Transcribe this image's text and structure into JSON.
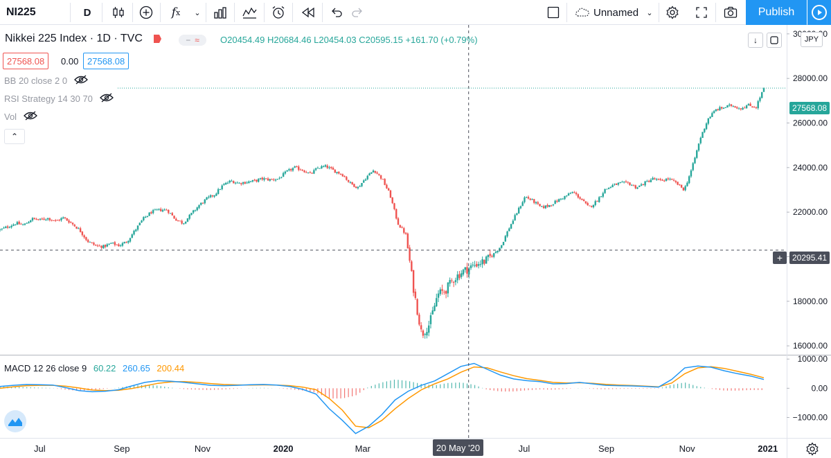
{
  "toolbar": {
    "symbol": "NI225",
    "interval": "D",
    "icons": [
      "candles-icon",
      "add-circle-icon",
      "fx-icon",
      "chevron-down-icon",
      "bar-chart-icon",
      "indicators-icon",
      "alarm-icon",
      "replay-icon",
      "undo-icon",
      "redo-icon",
      "square-icon",
      "cloud-icon",
      "gear-icon",
      "fullscreen-icon",
      "camera-icon",
      "play-icon"
    ],
    "layout_name": "Unnamed",
    "publish_label": "Publish"
  },
  "legend": {
    "title": "Nikkei 225 Index · 1D · TVC",
    "ohlc": "O20454.49 H20684.46 L20454.03 C20595.15 +161.70 (+0.79%)",
    "bid": "27568.08",
    "spread": "0.00",
    "ask": "27568.08",
    "indicators": [
      "BB 20 close 2 0",
      "RSI Strategy 14 30 70",
      "Vol"
    ],
    "currency": "JPY"
  },
  "macd_legend": {
    "label": "MACD 12 26 close 9",
    "v1": "60.22",
    "v2": "260.65",
    "v3": "200.44"
  },
  "price_axis": {
    "ticks": [
      "30000.00",
      "28000.00",
      "26000.00",
      "24000.00",
      "22000.00",
      "20000.00",
      "18000.00",
      "16000.00"
    ],
    "last_price": "27568.08",
    "crosshair_price": "20295.41"
  },
  "macd_axis": {
    "ticks": [
      "1000.00",
      "0.00",
      "−1000.00"
    ]
  },
  "time_axis": {
    "ticks": [
      "Jul",
      "Sep",
      "Nov",
      "2020",
      "Mar",
      "M",
      "Jul",
      "Sep",
      "Nov",
      "2021"
    ],
    "crosshair_date": "20 May '20"
  },
  "colors": {
    "up": "#26a69a",
    "down": "#ef5350",
    "accent": "#2196f3",
    "macd_line": "#2196f3",
    "signal_line": "#ff9800"
  },
  "chart_data": {
    "type": "candlestick",
    "title": "Nikkei 225 Index · 1D · TVC",
    "x_start": "2019-06-01",
    "x_end": "2020-12-29",
    "ylim": [
      15600,
      30400
    ],
    "closes": [
      21200,
      21350,
      21500,
      21420,
      21700,
      21650,
      21730,
      21600,
      21750,
      21500,
      21200,
      20700,
      20500,
      20450,
      20600,
      20500,
      20700,
      21200,
      21700,
      22000,
      22100,
      22100,
      21700,
      21500,
      21900,
      22300,
      22600,
      22800,
      23200,
      23400,
      23300,
      23350,
      23400,
      23500,
      23450,
      23500,
      23800,
      24000,
      23900,
      23700,
      24000,
      24050,
      23850,
      23700,
      23300,
      23100,
      23550,
      23900,
      23500,
      22800,
      21500,
      21000,
      18500,
      16500,
      17000,
      18300,
      18500,
      19000,
      19300,
      19500,
      19700,
      19800,
      20100,
      20500,
      21300,
      22000,
      22700,
      22500,
      22200,
      22300,
      22500,
      22700,
      22900,
      22600,
      22200,
      22500,
      23000,
      23200,
      23300,
      23300,
      23100,
      23300,
      23500,
      23400,
      23500,
      23300,
      23000,
      24000,
      25300,
      26200,
      26600,
      26700,
      26800,
      26650,
      26800,
      26700,
      27568.08
    ],
    "crosshair": {
      "date": "20 May '20",
      "price": 20295.41
    },
    "macd": {
      "label": "MACD 12 26 close 9",
      "macd_line": [
        60,
        100,
        130,
        120,
        110,
        20,
        -80,
        -120,
        -100,
        -50,
        80,
        200,
        260,
        240,
        200,
        150,
        100,
        90,
        100,
        120,
        130,
        110,
        60,
        -40,
        -200,
        -700,
        -1100,
        -1550,
        -1300,
        -900,
        -400,
        -100,
        100,
        250,
        500,
        750,
        850,
        650,
        450,
        320,
        260,
        230,
        150,
        160,
        200,
        150,
        100,
        90,
        80,
        60,
        40,
        300,
        700,
        760,
        720,
        600,
        500,
        420,
        300
      ],
      "signal_line": [
        0,
        50,
        90,
        100,
        100,
        70,
        10,
        -60,
        -80,
        -70,
        -10,
        80,
        170,
        220,
        230,
        200,
        160,
        130,
        115,
        110,
        115,
        110,
        90,
        40,
        -50,
        -350,
        -750,
        -1300,
        -1350,
        -1100,
        -700,
        -350,
        -50,
        150,
        320,
        550,
        730,
        700,
        560,
        430,
        330,
        270,
        200,
        180,
        190,
        170,
        135,
        110,
        95,
        75,
        50,
        180,
        500,
        700,
        740,
        680,
        580,
        480,
        360
      ],
      "ylim": [
        -1700,
        1100
      ]
    }
  }
}
